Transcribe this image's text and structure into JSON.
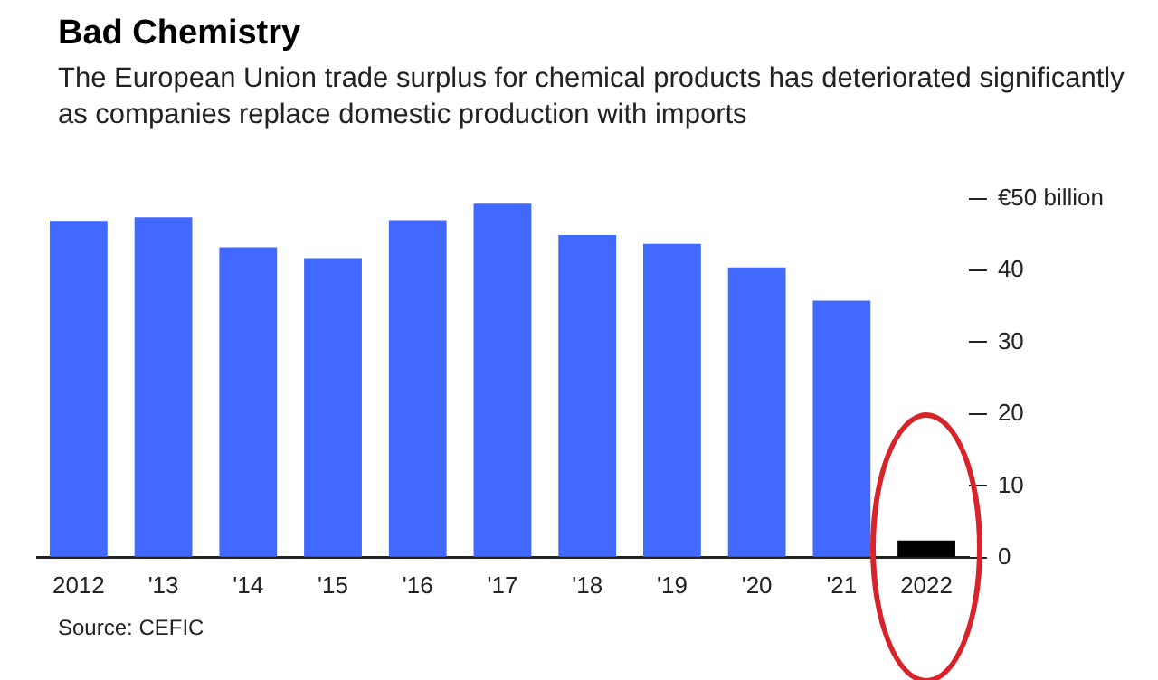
{
  "chart_data": {
    "type": "bar",
    "title": "Bad Chemistry",
    "subtitle": "The European Union trade surplus for chemical products has deteriorated significantly as companies replace domestic production with imports",
    "categories": [
      "2012",
      "'13",
      "'14",
      "'15",
      "'16",
      "'17",
      "'18",
      "'19",
      "'20",
      "'21",
      "2022"
    ],
    "values": [
      46.9,
      47.4,
      43.2,
      41.7,
      47.0,
      49.3,
      44.9,
      43.7,
      40.4,
      35.8,
      2.4
    ],
    "colors": [
      "#4169ff",
      "#4169ff",
      "#4169ff",
      "#4169ff",
      "#4169ff",
      "#4169ff",
      "#4169ff",
      "#4169ff",
      "#4169ff",
      "#4169ff",
      "#000000"
    ],
    "ylim": [
      0,
      50
    ],
    "yticks": [
      0,
      10,
      20,
      30,
      40,
      {
        "value": 50,
        "label": "€50 billion"
      }
    ],
    "grid": false,
    "legend": false,
    "annotations": [
      "Source: CEFIC"
    ]
  }
}
